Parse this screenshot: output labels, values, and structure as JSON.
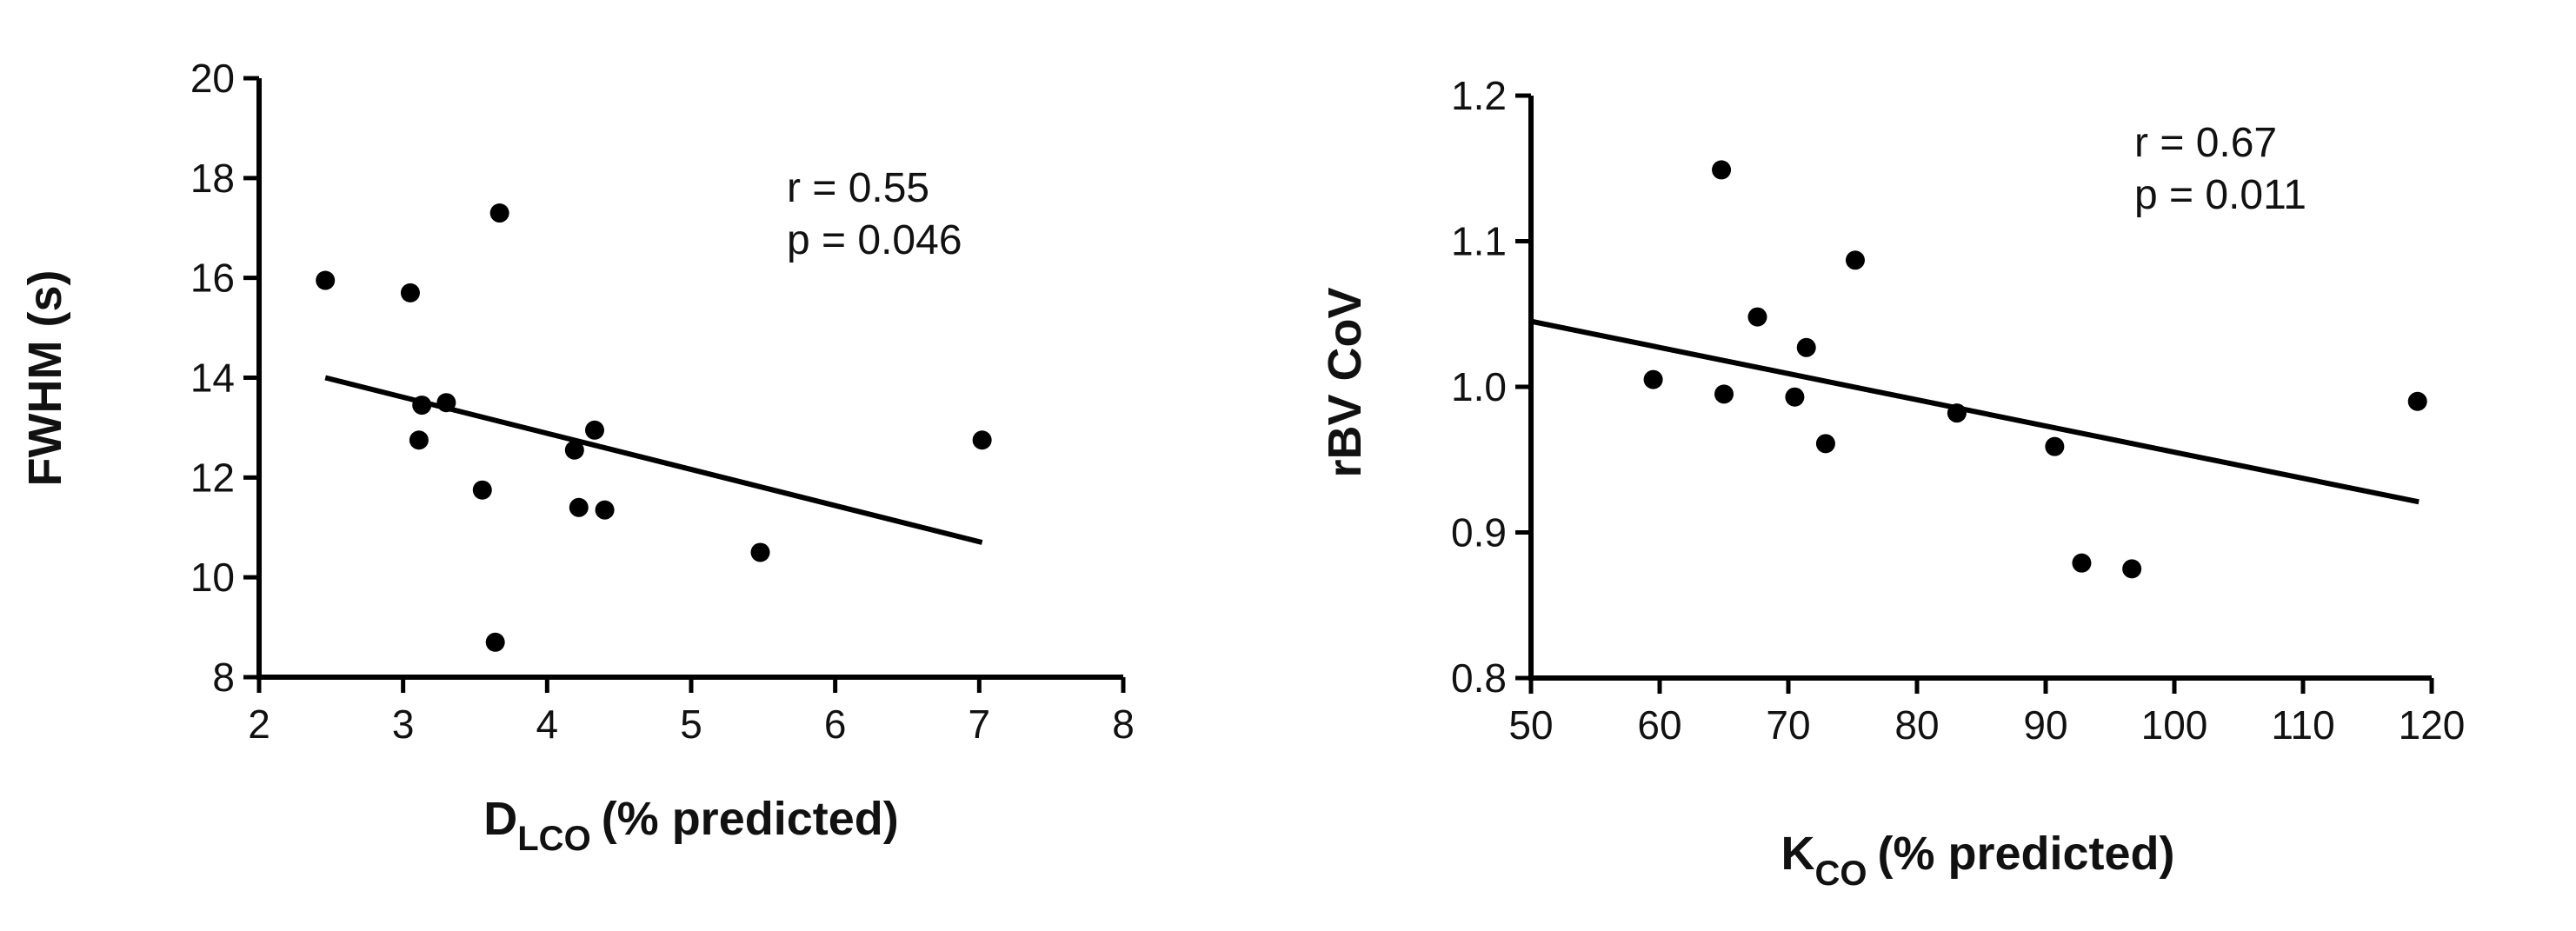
{
  "chart_data": [
    {
      "type": "scatter",
      "xlabel": {
        "main": "D",
        "sub": "LCO",
        "rest": "(% predicted)"
      },
      "ylabel": "FWHM (s)",
      "xlim": [
        2,
        8
      ],
      "ylim": [
        8,
        20
      ],
      "xticks": [
        "2",
        "3",
        "4",
        "5",
        "6",
        "7",
        "8"
      ],
      "yticks": [
        "8",
        "10",
        "12",
        "14",
        "16",
        "18",
        "20"
      ],
      "annotations": [
        "r = 0.55",
        "p = 0.046"
      ],
      "grid": false,
      "points": [
        {
          "x": 2.46,
          "y": 15.95
        },
        {
          "x": 3.05,
          "y": 15.7
        },
        {
          "x": 3.67,
          "y": 17.3
        },
        {
          "x": 3.13,
          "y": 13.45
        },
        {
          "x": 3.3,
          "y": 13.5
        },
        {
          "x": 3.11,
          "y": 12.75
        },
        {
          "x": 3.55,
          "y": 11.75
        },
        {
          "x": 3.64,
          "y": 8.7
        },
        {
          "x": 4.19,
          "y": 12.55
        },
        {
          "x": 4.33,
          "y": 12.95
        },
        {
          "x": 4.22,
          "y": 11.4
        },
        {
          "x": 4.4,
          "y": 11.35
        },
        {
          "x": 5.48,
          "y": 10.5
        },
        {
          "x": 7.02,
          "y": 12.75
        }
      ],
      "fit_line": {
        "x": [
          2.46,
          7.02
        ],
        "y": [
          14.0,
          10.7
        ]
      }
    },
    {
      "type": "scatter",
      "xlabel": {
        "main": "K",
        "sub": "CO",
        "rest": "(% predicted)"
      },
      "ylabel": "rBV CoV",
      "xlim": [
        50,
        120
      ],
      "ylim": [
        0.8,
        1.2
      ],
      "xticks": [
        "50",
        "60",
        "70",
        "80",
        "90",
        "100",
        "110",
        "120"
      ],
      "yticks": [
        "0.8",
        "0.9",
        "1.0",
        "1.1",
        "1.2"
      ],
      "annotations": [
        "r = 0.67",
        "p = 0.011"
      ],
      "grid": false,
      "points": [
        {
          "x": 59.5,
          "y": 1.005
        },
        {
          "x": 64.8,
          "y": 1.149
        },
        {
          "x": 65.0,
          "y": 0.995
        },
        {
          "x": 67.6,
          "y": 1.048
        },
        {
          "x": 70.5,
          "y": 0.993
        },
        {
          "x": 71.4,
          "y": 1.027
        },
        {
          "x": 72.9,
          "y": 0.961
        },
        {
          "x": 75.2,
          "y": 1.087
        },
        {
          "x": 83.1,
          "y": 0.982
        },
        {
          "x": 90.7,
          "y": 0.959
        },
        {
          "x": 92.8,
          "y": 0.879
        },
        {
          "x": 96.7,
          "y": 0.875
        },
        {
          "x": 118.9,
          "y": 0.99
        }
      ],
      "fit_line": {
        "x": [
          50,
          119
        ],
        "y": [
          1.045,
          0.921
        ]
      }
    }
  ]
}
